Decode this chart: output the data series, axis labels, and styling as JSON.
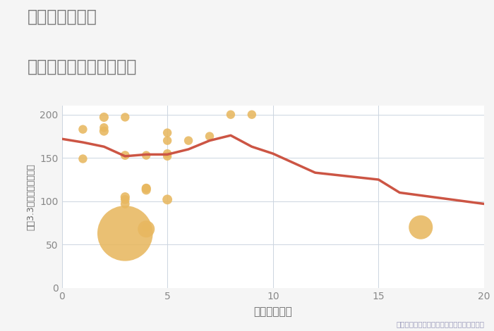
{
  "title_line1": "愛知県矢田駅の",
  "title_line2": "駅距離別中古戸建て価格",
  "xlabel": "駅距離（分）",
  "ylabel": "坪（3.3㎡）単価（万円）",
  "annotation": "円の大きさは、取引のあった物件面積を示す",
  "bg_color": "#f5f5f5",
  "plot_bg_color": "#ffffff",
  "grid_color": "#ccd5e0",
  "title_color": "#888888",
  "line_color": "#cc5544",
  "scatter_color": "#e8b860",
  "annotation_color": "#9999bb",
  "line_x": [
    0,
    1,
    2,
    3,
    4,
    5,
    6,
    7,
    8,
    9,
    10,
    12,
    15,
    16,
    20
  ],
  "line_y": [
    172,
    168,
    163,
    152,
    154,
    154,
    160,
    170,
    176,
    163,
    155,
    133,
    125,
    110,
    97
  ],
  "scatter_x": [
    1,
    1,
    2,
    2,
    2,
    3,
    3,
    3,
    3,
    3,
    3,
    4,
    4,
    4,
    4,
    4,
    4,
    5,
    5,
    5,
    5,
    5,
    6,
    7,
    8,
    9,
    17
  ],
  "scatter_y": [
    149,
    183,
    181,
    197,
    185,
    197,
    153,
    102,
    105,
    97,
    63,
    153,
    115,
    113,
    115,
    70,
    68,
    155,
    102,
    170,
    179,
    152,
    170,
    175,
    200,
    200,
    70
  ],
  "scatter_sizes": [
    80,
    80,
    90,
    90,
    80,
    80,
    85,
    85,
    90,
    85,
    3200,
    80,
    90,
    90,
    80,
    80,
    300,
    80,
    100,
    80,
    80,
    80,
    80,
    80,
    80,
    80,
    600
  ],
  "xlim": [
    0,
    20
  ],
  "ylim": [
    0,
    210
  ],
  "xticks": [
    0,
    5,
    10,
    15,
    20
  ],
  "yticks": [
    0,
    50,
    100,
    150,
    200
  ]
}
